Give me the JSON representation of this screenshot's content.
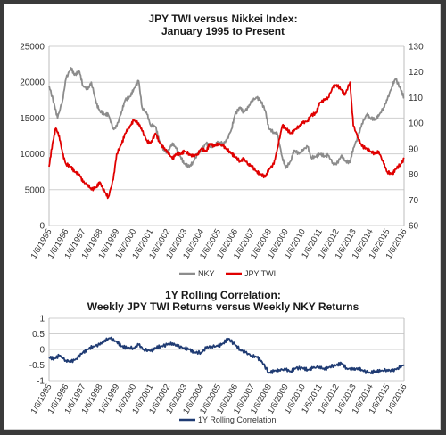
{
  "chart_data": [
    {
      "type": "line",
      "title": "JPY TWI  versus Nikkei Index:",
      "subtitle": "January 1995 to Present",
      "x_tick_labels": [
        "1/6/1995",
        "1/6/1996",
        "1/6/1997",
        "1/6/1998",
        "1/6/1999",
        "1/6/2000",
        "1/6/2001",
        "1/6/2002",
        "1/6/2003",
        "1/6/2004",
        "1/6/2005",
        "1/6/2006",
        "1/6/2007",
        "1/6/2008",
        "1/6/2009",
        "1/6/2010",
        "1/6/2011",
        "1/6/2012",
        "1/6/2013",
        "1/6/2014",
        "1/6/2015",
        "1/6/2016"
      ],
      "y_left": {
        "ticks": [
          "0",
          "5000",
          "10000",
          "15000",
          "20000",
          "25000"
        ],
        "ylim": [
          0,
          25000
        ]
      },
      "y_right": {
        "ticks": [
          "60",
          "70",
          "80",
          "90",
          "100",
          "110",
          "120",
          "130"
        ],
        "ylim": [
          60,
          130
        ]
      },
      "grid": true,
      "legend": "bottom",
      "series": [
        {
          "name": "NKY",
          "axis": "left",
          "color": "#8c8c8c",
          "x": [
            1995.0,
            1995.3,
            1995.5,
            1995.8,
            1996.0,
            1996.3,
            1996.5,
            1996.8,
            1997.0,
            1997.3,
            1997.5,
            1997.8,
            1998.0,
            1998.3,
            1998.5,
            1998.8,
            1999.0,
            1999.3,
            1999.5,
            1999.8,
            2000.0,
            2000.3,
            2000.5,
            2000.8,
            2001.0,
            2001.3,
            2001.5,
            2001.8,
            2002.0,
            2002.3,
            2002.5,
            2002.8,
            2003.0,
            2003.3,
            2003.5,
            2003.8,
            2004.0,
            2004.3,
            2004.5,
            2004.8,
            2005.0,
            2005.3,
            2005.5,
            2005.8,
            2006.0,
            2006.3,
            2006.5,
            2006.8,
            2007.0,
            2007.3,
            2007.5,
            2007.8,
            2008.0,
            2008.3,
            2008.5,
            2008.8,
            2009.0,
            2009.3,
            2009.5,
            2009.8,
            2010.0,
            2010.3,
            2010.5,
            2010.8,
            2011.0,
            2011.3,
            2011.5,
            2011.8,
            2012.0,
            2012.3,
            2012.5,
            2012.8,
            2013.0,
            2013.3,
            2013.5,
            2013.8,
            2014.0,
            2014.3,
            2014.5,
            2014.8,
            2015.0,
            2015.3,
            2015.5,
            2015.8,
            2016.0
          ],
          "values": [
            19500,
            17000,
            15000,
            17500,
            20500,
            22000,
            21000,
            21500,
            19500,
            19000,
            20000,
            17000,
            16000,
            15500,
            15500,
            13500,
            13800,
            16000,
            17500,
            18000,
            19000,
            20200,
            16500,
            15500,
            14000,
            13800,
            12000,
            10500,
            10200,
            11500,
            10800,
            9500,
            8600,
            8200,
            8800,
            10000,
            10500,
            11500,
            11000,
            11200,
            11600,
            11500,
            11800,
            13500,
            15500,
            16500,
            15800,
            16500,
            17500,
            17800,
            17500,
            16000,
            13500,
            13000,
            12800,
            9500,
            8000,
            9000,
            10500,
            10000,
            10600,
            11000,
            9500,
            9600,
            10000,
            9700,
            9800,
            8700,
            8500,
            9800,
            9000,
            8800,
            10800,
            12500,
            14200,
            15500,
            15000,
            14800,
            15300,
            16500,
            17500,
            19500,
            20500,
            19000,
            17800
          ]
        },
        {
          "name": "JPY TWI",
          "axis": "right",
          "color": "#e00000",
          "x": [
            1995.0,
            1995.2,
            1995.4,
            1995.6,
            1995.8,
            1996.0,
            1996.3,
            1996.5,
            1996.8,
            1997.0,
            1997.3,
            1997.5,
            1997.8,
            1998.0,
            1998.3,
            1998.5,
            1998.8,
            1999.0,
            1999.3,
            1999.5,
            1999.8,
            2000.0,
            2000.3,
            2000.5,
            2000.8,
            2001.0,
            2001.3,
            2001.5,
            2001.8,
            2002.0,
            2002.3,
            2002.5,
            2002.8,
            2003.0,
            2003.3,
            2003.5,
            2003.8,
            2004.0,
            2004.3,
            2004.5,
            2004.8,
            2005.0,
            2005.3,
            2005.5,
            2005.8,
            2006.0,
            2006.3,
            2006.5,
            2006.8,
            2007.0,
            2007.3,
            2007.5,
            2007.8,
            2008.0,
            2008.3,
            2008.5,
            2008.8,
            2009.0,
            2009.3,
            2009.5,
            2009.8,
            2010.0,
            2010.3,
            2010.5,
            2010.8,
            2011.0,
            2011.3,
            2011.5,
            2011.8,
            2012.0,
            2012.3,
            2012.5,
            2012.8,
            2013.0,
            2013.3,
            2013.5,
            2013.8,
            2014.0,
            2014.3,
            2014.5,
            2014.8,
            2015.0,
            2015.3,
            2015.5,
            2015.8,
            2016.0
          ],
          "values": [
            83,
            92,
            98,
            95,
            88,
            84,
            83,
            81,
            80,
            77,
            76,
            74,
            75,
            77,
            73,
            71,
            78,
            88,
            92,
            96,
            99,
            101,
            100,
            97,
            93,
            92,
            96,
            93,
            90,
            89,
            86,
            88,
            88,
            89,
            88,
            87,
            88,
            90,
            89,
            92,
            91,
            92,
            91,
            90,
            88,
            87,
            85,
            86,
            84,
            83,
            81,
            80,
            79,
            82,
            84,
            90,
            99,
            98,
            96,
            97,
            99,
            100,
            101,
            103,
            104,
            108,
            109,
            110,
            114,
            115,
            113,
            111,
            116,
            99,
            94,
            91,
            90,
            89,
            88,
            89,
            84,
            81,
            80,
            82,
            84,
            86
          ]
        }
      ]
    },
    {
      "type": "line",
      "title": "1Y Rolling Correlation:",
      "subtitle": "Weekly JPY TWI  Returns versus Weekly NKY Returns",
      "x_tick_labels": [
        "1/6/1995",
        "1/6/1996",
        "1/6/1997",
        "1/6/1998",
        "1/6/1999",
        "1/6/2000",
        "1/6/2001",
        "1/6/2002",
        "1/6/2003",
        "1/6/2004",
        "1/6/2005",
        "1/6/2006",
        "1/6/2007",
        "1/6/2008",
        "1/6/2009",
        "1/6/2010",
        "1/6/2011",
        "1/6/2012",
        "1/6/2013",
        "1/6/2014",
        "1/6/2015",
        "1/6/2016"
      ],
      "y_left": {
        "ticks": [
          "1",
          "0.5",
          "0",
          "-0.5",
          "-1"
        ],
        "ylim": [
          -1,
          1
        ]
      },
      "grid": true,
      "legend": "bottom",
      "series": [
        {
          "name": "1Y Rolling Correlation",
          "axis": "left",
          "color": "#1f3b73",
          "x": [
            1995.0,
            1995.3,
            1995.6,
            1996.0,
            1996.3,
            1996.6,
            1997.0,
            1997.3,
            1997.6,
            1998.0,
            1998.3,
            1998.6,
            1999.0,
            1999.3,
            1999.6,
            2000.0,
            2000.3,
            2000.6,
            2001.0,
            2001.3,
            2001.6,
            2002.0,
            2002.3,
            2002.6,
            2003.0,
            2003.3,
            2003.6,
            2004.0,
            2004.3,
            2004.6,
            2005.0,
            2005.3,
            2005.6,
            2006.0,
            2006.3,
            2006.6,
            2007.0,
            2007.3,
            2007.6,
            2008.0,
            2008.3,
            2008.6,
            2009.0,
            2009.3,
            2009.6,
            2010.0,
            2010.3,
            2010.6,
            2011.0,
            2011.3,
            2011.6,
            2012.0,
            2012.3,
            2012.6,
            2013.0,
            2013.3,
            2013.6,
            2014.0,
            2014.3,
            2014.6,
            2015.0,
            2015.3,
            2015.6,
            2016.0
          ],
          "values": [
            -0.25,
            -0.3,
            -0.2,
            -0.35,
            -0.4,
            -0.3,
            -0.1,
            0.0,
            0.1,
            0.15,
            0.3,
            0.35,
            0.25,
            0.1,
            0.05,
            0.05,
            0.15,
            0.0,
            -0.05,
            0.05,
            0.1,
            0.15,
            0.2,
            0.1,
            0.05,
            0.0,
            -0.1,
            -0.1,
            0.05,
            0.1,
            0.1,
            0.2,
            0.35,
            0.15,
            0.0,
            -0.1,
            -0.2,
            -0.25,
            -0.4,
            -0.75,
            -0.7,
            -0.65,
            -0.65,
            -0.7,
            -0.6,
            -0.6,
            -0.65,
            -0.6,
            -0.55,
            -0.65,
            -0.55,
            -0.5,
            -0.45,
            -0.6,
            -0.65,
            -0.6,
            -0.7,
            -0.75,
            -0.7,
            -0.7,
            -0.65,
            -0.7,
            -0.6,
            -0.5
          ]
        }
      ]
    }
  ]
}
